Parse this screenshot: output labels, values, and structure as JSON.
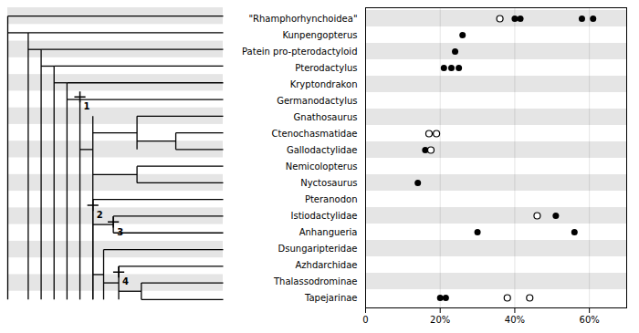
{
  "chart_data": {
    "type": "scatter",
    "categories": [
      "\"Rhamphorhynchoidea\"",
      "Kunpengopterus",
      "Patein pro-pterodactyloid",
      "Pterodactylus",
      "Kryptondrakon",
      "Germanodactylus",
      "Gnathosaurus",
      "Ctenochasmatidae",
      "Gallodactylidae",
      "Nemicolopterus",
      "Nyctosaurus",
      "Pteranodon",
      "Istiodactylidae",
      "Anhangueria",
      "Dsungaripteridae",
      "Azhdarchidae",
      "Thalassodrominae",
      "Tapejarinae"
    ],
    "series": [
      {
        "marker": "circle",
        "values": [
          [
            40,
            41.5,
            58,
            61
          ],
          [
            26
          ],
          [
            24
          ],
          [
            21,
            23,
            25
          ],
          [],
          [],
          [],
          [],
          [
            16
          ],
          [],
          [
            14
          ],
          [],
          [
            51
          ],
          [
            30,
            56
          ],
          [],
          [],
          [],
          [
            20,
            21.5
          ]
        ]
      },
      {
        "marker": "circle_open",
        "values": [
          [
            36
          ],
          [],
          [],
          [],
          [],
          [],
          [],
          [
            17,
            19
          ],
          [
            17.5
          ],
          [],
          [],
          [],
          [
            46
          ],
          [],
          [],
          [],
          [],
          [
            38,
            44
          ]
        ]
      }
    ],
    "xlim": [
      0,
      70
    ],
    "xticks": [
      0,
      {
        "value": 20,
        "label": "20%"
      },
      {
        "value": 40,
        "label": "40%"
      },
      {
        "value": 60,
        "label": "60%"
      }
    ],
    "grid": true,
    "annotations": [
      "1",
      "2",
      "3",
      "4"
    ]
  }
}
